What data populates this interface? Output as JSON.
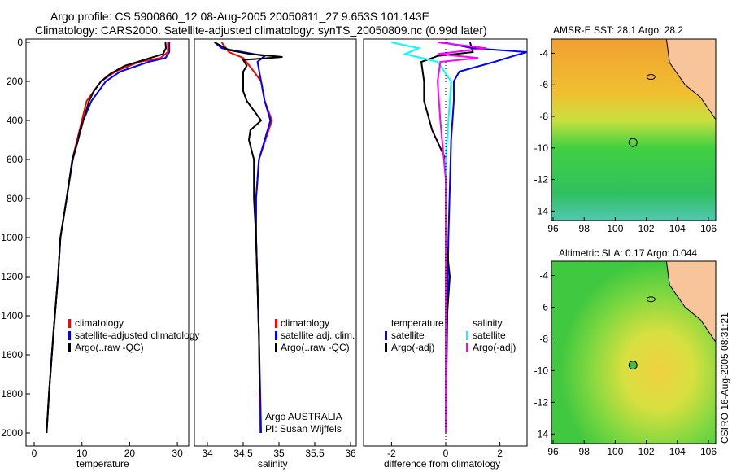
{
  "title_line1": "Argo profile: CS 5900860_12 08-Aug-2005 20050811_27 9.653S 101.143E",
  "title_line2": "Climatology: CARS2000. Satellite-adjusted climatology: synTS_20050809.nc (0.99d later)",
  "side_label": "CSIRO 16-Aug-2005 08:31:21",
  "colors": {
    "climatology": "#ff0000",
    "satellite": "#0000ff",
    "argo": "#000000",
    "sal_sat": "#00ffff",
    "sal_argo": "#ff00ff",
    "land": "#f8c49a"
  },
  "chart_data": [
    {
      "type": "line",
      "xlabel": "temperature",
      "ylabel": "",
      "xlim": [
        -2,
        32
      ],
      "ylim": [
        2060,
        -20
      ],
      "xticks": [
        "0",
        "10",
        "20",
        "30"
      ],
      "yticks": [
        "0",
        "200",
        "400",
        "600",
        "800",
        "1000",
        "1200",
        "1400",
        "1600",
        "1800",
        "2000"
      ],
      "legend": [
        "climatology",
        "satellite-adjusted climatology",
        "Argo(..raw -QC)"
      ],
      "series": [
        {
          "name": "climatology",
          "color": "#ff0000",
          "depth": [
            0,
            50,
            80,
            100,
            150,
            200,
            300,
            400,
            500,
            600,
            800,
            1000,
            1200,
            1500,
            1800,
            2000
          ],
          "values": [
            28,
            28,
            26.5,
            22,
            17,
            14,
            11,
            10,
            9,
            8,
            6.8,
            5.5,
            5,
            4,
            3.1,
            2.6
          ]
        },
        {
          "name": "satellite-adjusted climatology",
          "color": "#0000ff",
          "depth": [
            0,
            50,
            80,
            100,
            150,
            200,
            300,
            400,
            500,
            600,
            800,
            1000,
            1200,
            1500,
            1800,
            2000
          ],
          "values": [
            28.3,
            28.3,
            27.5,
            24,
            18,
            15,
            12,
            10.3,
            9.2,
            8.1,
            6.8,
            5.5,
            5,
            4,
            3.1,
            2.6
          ]
        },
        {
          "name": "Argo(..raw -QC)",
          "color": "#000000",
          "depth": [
            0,
            30,
            60,
            90,
            120,
            160,
            200,
            250,
            300,
            400,
            450,
            500,
            600,
            800,
            1000,
            1200,
            1500,
            1800,
            2000
          ],
          "values": [
            27.5,
            27.6,
            27,
            23,
            19,
            16,
            14,
            12.5,
            11.5,
            10.3,
            9.6,
            9.2,
            8,
            6.8,
            5.5,
            5,
            4,
            3.1,
            2.6
          ]
        }
      ]
    },
    {
      "type": "line",
      "xlabel": "salinity",
      "xlim": [
        33.7,
        36.1
      ],
      "ylim": [
        2060,
        -20
      ],
      "xticks": [
        "34",
        "34.5",
        "35",
        "35.5",
        "36"
      ],
      "legend": [
        "climatology",
        "satellite adj. clim.",
        "Argo(..raw -QC)"
      ],
      "annotation": [
        "Argo AUSTRALIA",
        "PI: Susan Wijffels"
      ],
      "series": [
        {
          "name": "climatology",
          "color": "#ff0000",
          "depth": [
            0,
            50,
            80,
            150,
            200,
            300,
            400,
            600,
            800,
            1000,
            1500,
            2000
          ],
          "values": [
            34.2,
            34.3,
            34.5,
            34.65,
            34.75,
            34.8,
            34.9,
            34.72,
            34.68,
            34.68,
            34.72,
            34.74
          ]
        },
        {
          "name": "satellite adj. clim.",
          "color": "#0000ff",
          "depth": [
            0,
            30,
            70,
            100,
            200,
            300,
            400,
            600,
            800,
            1000,
            1500,
            2000
          ],
          "values": [
            34.1,
            34.2,
            34.8,
            34.7,
            34.75,
            34.8,
            34.88,
            34.72,
            34.68,
            34.68,
            34.72,
            34.75
          ]
        },
        {
          "name": "Argo(..raw -QC)",
          "color": "#000000",
          "depth": [
            0,
            40,
            60,
            75,
            90,
            120,
            150,
            250,
            300,
            400,
            450,
            500,
            600,
            800,
            1000,
            1500,
            1800
          ],
          "values": [
            34.1,
            34.3,
            34.6,
            35.05,
            34.5,
            34.55,
            34.5,
            34.5,
            34.55,
            34.75,
            34.6,
            34.58,
            34.65,
            34.65,
            34.68,
            34.72,
            34.73
          ]
        }
      ]
    },
    {
      "type": "line",
      "xlabel": "difference from climatology",
      "xlim": [
        -3,
        3
      ],
      "ylim": [
        2060,
        -20
      ],
      "xticks": [
        "-2",
        "0",
        "2"
      ],
      "legend_temperature": {
        "heading": "temperature",
        "items": [
          "satellite",
          "Argo(-adj)"
        ]
      },
      "legend_salinity": {
        "heading": "salinity",
        "items": [
          "satellite",
          "Argo(-adj)"
        ]
      },
      "series": [
        {
          "name": "temperature satellite",
          "color": "#0000ff",
          "depth": [
            0,
            30,
            50,
            70,
            100,
            150,
            200,
            300,
            500,
            1000,
            2000
          ],
          "values": [
            -0.1,
            1,
            3,
            2.5,
            1.8,
            0.5,
            0.3,
            0.3,
            0.2,
            0.1,
            0
          ]
        },
        {
          "name": "temperature Argo(-adj)",
          "color": "#000000",
          "depth": [
            0,
            50,
            70,
            100,
            200,
            300,
            450,
            600,
            1000,
            1200,
            1400,
            1800
          ],
          "values": [
            0.9,
            1,
            -0.3,
            -0.9,
            -0.8,
            -0.8,
            -0.5,
            0,
            0,
            0.15,
            0.05,
            0
          ]
        },
        {
          "name": "salinity satellite",
          "color": "#00ffff",
          "depth": [
            0,
            30,
            60,
            100,
            200,
            400,
            600,
            1000,
            2000
          ],
          "values": [
            -2,
            -1,
            -1.5,
            -0.3,
            0.2,
            0.1,
            0,
            0,
            0
          ]
        },
        {
          "name": "salinity Argo(-adj)",
          "color": "#ff00ff",
          "depth": [
            0,
            30,
            60,
            80,
            100,
            200,
            400,
            700,
            2000
          ],
          "values": [
            -0.3,
            1.5,
            -0.3,
            1.2,
            -0.2,
            -0.3,
            -0.2,
            0,
            0
          ]
        }
      ]
    },
    {
      "type": "heatmap",
      "title": "AMSR-E SST: 28.1 Argo: 28.2",
      "xticks": [
        "96",
        "98",
        "100",
        "102",
        "104",
        "106"
      ],
      "yticks": [
        "-4",
        "-6",
        "-8",
        "-10",
        "-12",
        "-14"
      ],
      "argo_position": [
        101.143,
        -9.653
      ]
    },
    {
      "type": "heatmap",
      "title": "Altimetric SLA: 0.17 Argo: 0.044",
      "xticks": [
        "96",
        "98",
        "100",
        "102",
        "104",
        "106"
      ],
      "yticks": [
        "-4",
        "-6",
        "-8",
        "-10",
        "-12",
        "-14"
      ],
      "argo_position": [
        101.143,
        -9.653
      ]
    }
  ]
}
